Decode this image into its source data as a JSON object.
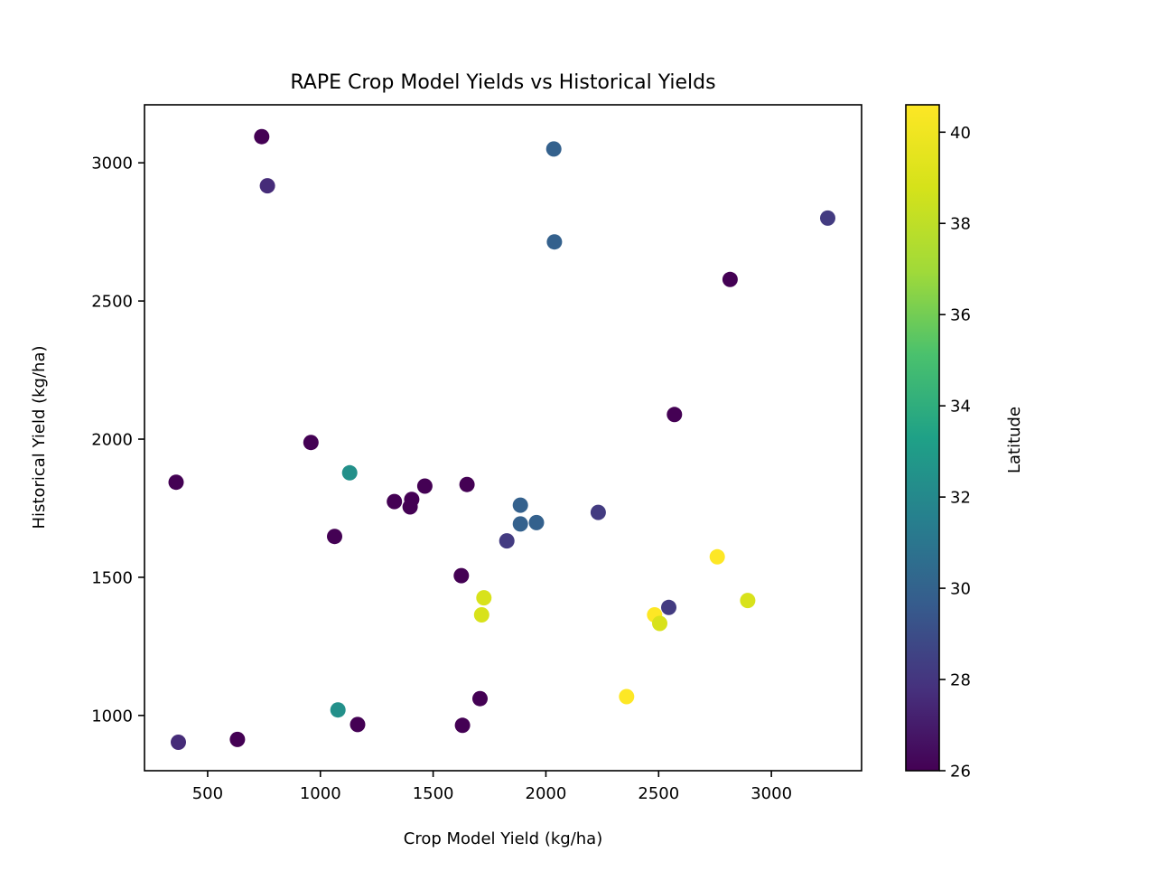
{
  "chart_data": {
    "type": "scatter",
    "title": "RAPE Crop Model Yields vs Historical Yields",
    "xlabel": "Crop Model Yield (kg/ha)",
    "ylabel": "Historical Yield (kg/ha)",
    "xlim": [
      220,
      3400
    ],
    "ylim": [
      800,
      3210
    ],
    "xticks": [
      500,
      1000,
      1500,
      2000,
      2500,
      3000
    ],
    "yticks": [
      1000,
      1500,
      2000,
      2500,
      3000
    ],
    "grid": false,
    "colorbar": {
      "label": "Latitude",
      "colormap": "viridis",
      "range": [
        26.0,
        40.6
      ],
      "ticks": [
        26,
        28,
        30,
        32,
        34,
        36,
        38,
        40
      ]
    },
    "points": [
      {
        "x": 740,
        "y": 3095,
        "c": 26.0
      },
      {
        "x": 765,
        "y": 2917,
        "c": 27.6
      },
      {
        "x": 2035,
        "y": 3050,
        "c": 29.9
      },
      {
        "x": 2038,
        "y": 2714,
        "c": 29.9
      },
      {
        "x": 3250,
        "y": 2800,
        "c": 28.2
      },
      {
        "x": 2817,
        "y": 2578,
        "c": 26.0
      },
      {
        "x": 2570,
        "y": 2089,
        "c": 26.0
      },
      {
        "x": 958,
        "y": 1988,
        "c": 26.0
      },
      {
        "x": 360,
        "y": 1844,
        "c": 26.0
      },
      {
        "x": 1130,
        "y": 1878,
        "c": 32.4
      },
      {
        "x": 1328,
        "y": 1774,
        "c": 26.0
      },
      {
        "x": 1405,
        "y": 1782,
        "c": 26.0
      },
      {
        "x": 1398,
        "y": 1755,
        "c": 26.0
      },
      {
        "x": 1463,
        "y": 1830,
        "c": 26.0
      },
      {
        "x": 1650,
        "y": 1836,
        "c": 26.0
      },
      {
        "x": 1887,
        "y": 1761,
        "c": 29.9
      },
      {
        "x": 1887,
        "y": 1693,
        "c": 29.9
      },
      {
        "x": 1958,
        "y": 1698,
        "c": 29.9
      },
      {
        "x": 2232,
        "y": 1735,
        "c": 28.2
      },
      {
        "x": 1827,
        "y": 1632,
        "c": 28.2
      },
      {
        "x": 1063,
        "y": 1648,
        "c": 26.0
      },
      {
        "x": 1625,
        "y": 1506,
        "c": 26.0
      },
      {
        "x": 1725,
        "y": 1426,
        "c": 38.9
      },
      {
        "x": 1715,
        "y": 1364,
        "c": 38.9
      },
      {
        "x": 2760,
        "y": 1574,
        "c": 40.6
      },
      {
        "x": 2895,
        "y": 1416,
        "c": 38.9
      },
      {
        "x": 2545,
        "y": 1391,
        "c": 28.2
      },
      {
        "x": 2482,
        "y": 1364,
        "c": 40.6
      },
      {
        "x": 2505,
        "y": 1333,
        "c": 38.9
      },
      {
        "x": 2358,
        "y": 1068,
        "c": 40.6
      },
      {
        "x": 1708,
        "y": 1061,
        "c": 26.0
      },
      {
        "x": 1630,
        "y": 964,
        "c": 26.0
      },
      {
        "x": 1165,
        "y": 967,
        "c": 26.0
      },
      {
        "x": 1078,
        "y": 1020,
        "c": 32.4
      },
      {
        "x": 632,
        "y": 913,
        "c": 26.0
      },
      {
        "x": 370,
        "y": 903,
        "c": 27.6
      }
    ]
  }
}
